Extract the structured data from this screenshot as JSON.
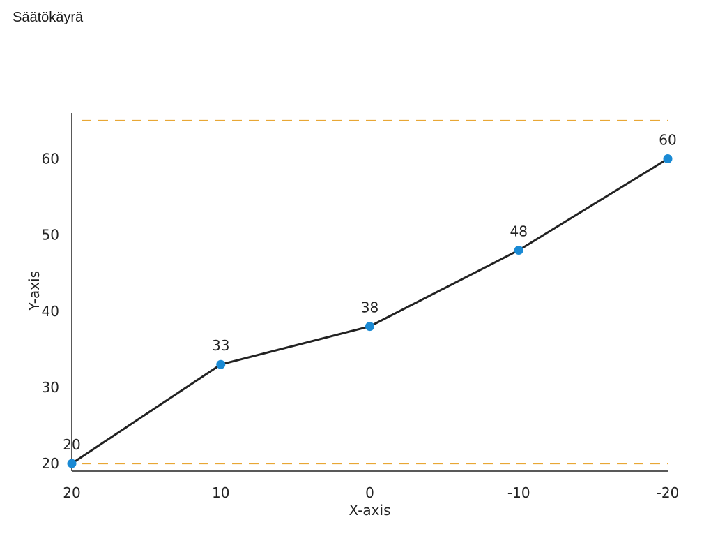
{
  "chart_data": {
    "type": "line",
    "title": "Säätökäyrä",
    "xlabel": "X-axis",
    "ylabel": "Y-axis",
    "x": [
      20,
      10,
      0,
      -10,
      -20
    ],
    "x_tick_labels": [
      "20",
      "10",
      "0",
      "-10",
      "-20"
    ],
    "series": [
      {
        "values": [
          20,
          33,
          38,
          48,
          60
        ],
        "data_labels": [
          "20",
          "33",
          "38",
          "48",
          "60"
        ],
        "line_color": "#222222",
        "marker_color": "#1a8ad4"
      }
    ],
    "y_ticks": [
      20,
      30,
      40,
      50,
      60
    ],
    "y_tick_labels": [
      "20",
      "30",
      "40",
      "50",
      "60"
    ],
    "xlim": [
      20,
      -20
    ],
    "ylim": [
      19,
      66
    ],
    "reference_lines": [
      {
        "axis": "y",
        "value": 65,
        "style": "dashed",
        "color": "#e8a735"
      },
      {
        "axis": "y",
        "value": 20,
        "style": "dashed",
        "color": "#e8a735"
      }
    ],
    "grid": false,
    "legend": "none"
  }
}
